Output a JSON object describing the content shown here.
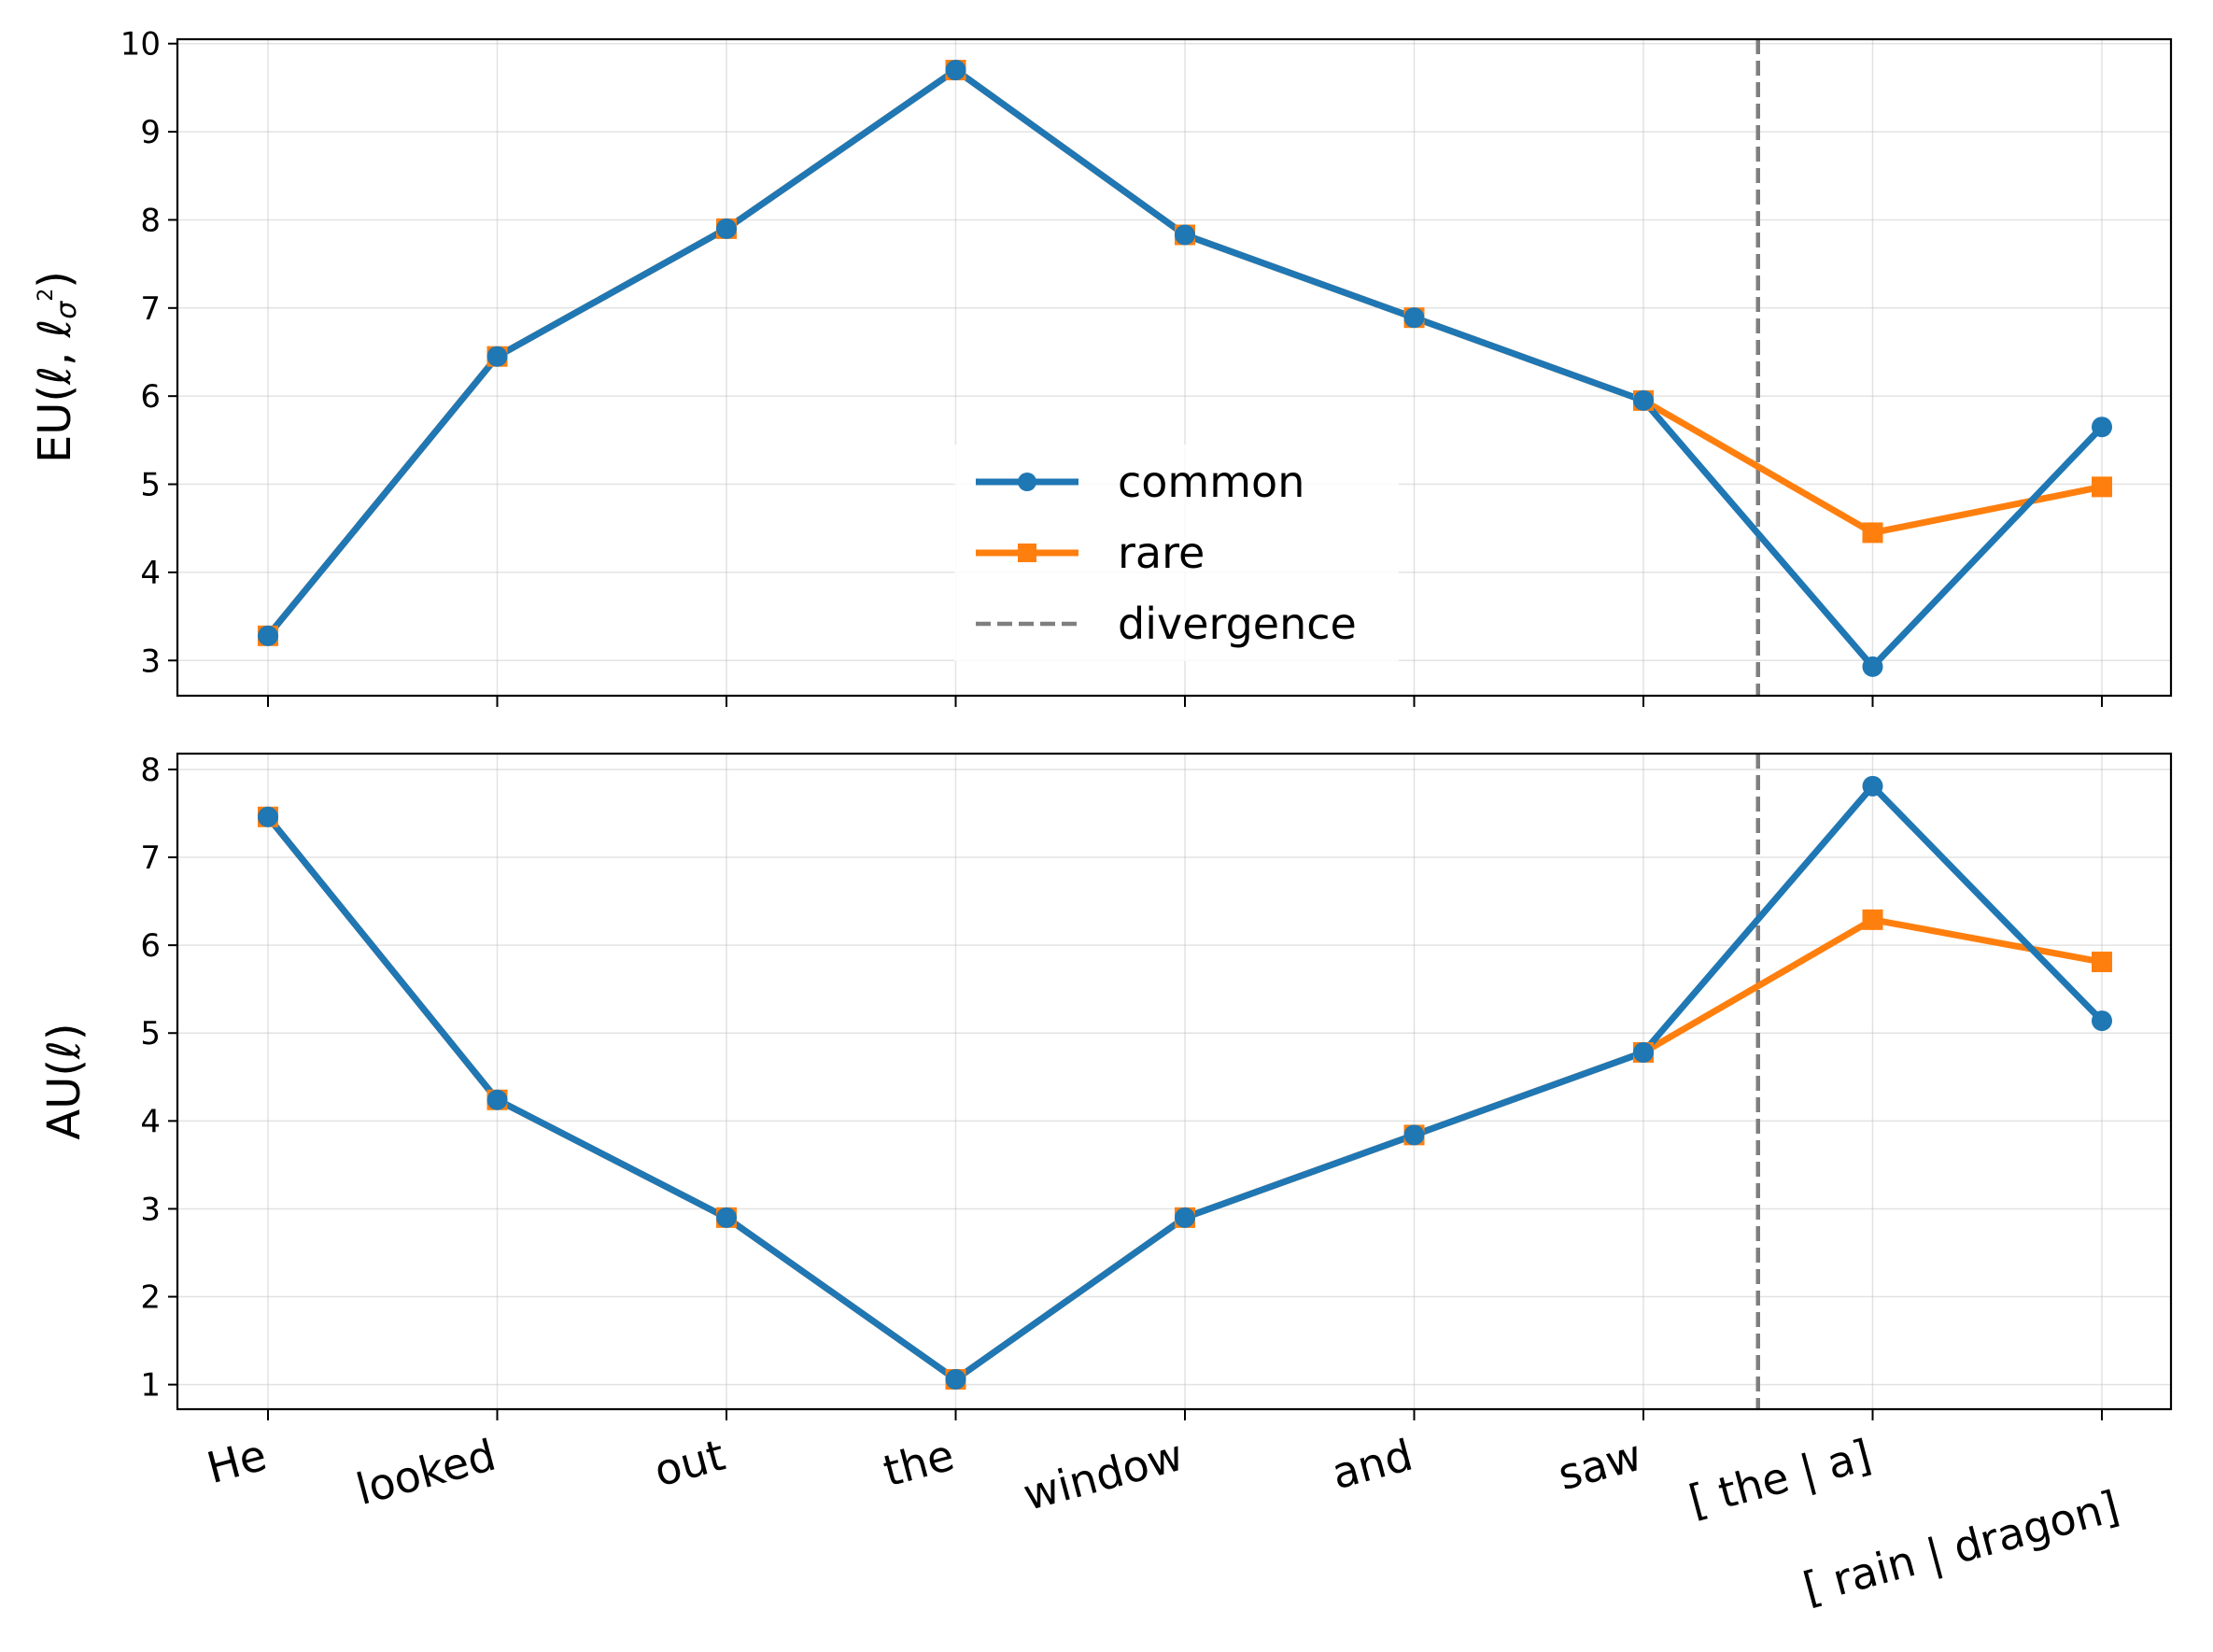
{
  "chart_data": [
    {
      "type": "line",
      "panel": "top",
      "ylabel": "EU(ℓ, ℓσ²)",
      "ylim": [
        2.6,
        10.05
      ],
      "yticks": [
        3,
        4,
        5,
        6,
        7,
        8,
        9,
        10
      ],
      "categories": [
        "He",
        "looked",
        "out",
        "the",
        "window",
        "and",
        "saw",
        "[ the |  a]",
        "[ rain |  dragon]"
      ],
      "divergence_x": 6.5,
      "series": [
        {
          "name": "common",
          "color": "#1f77b4",
          "marker": "circle",
          "values": [
            3.28,
            6.45,
            7.9,
            9.7,
            7.83,
            6.89,
            5.95,
            2.93,
            5.65
          ]
        },
        {
          "name": "rare",
          "color": "#ff7f0e",
          "marker": "square",
          "values": [
            3.28,
            6.45,
            7.9,
            9.7,
            7.83,
            6.89,
            5.95,
            4.45,
            4.97
          ]
        }
      ],
      "legend": {
        "position": "center",
        "items": [
          {
            "label": "common",
            "style": "line-circle",
            "color": "#1f77b4"
          },
          {
            "label": "rare",
            "style": "line-square",
            "color": "#ff7f0e"
          },
          {
            "label": "divergence",
            "style": "dashed",
            "color": "#7f7f7f"
          }
        ]
      }
    },
    {
      "type": "line",
      "panel": "bottom",
      "ylabel": "AU(ℓ)",
      "ylim": [
        0.72,
        8.18
      ],
      "yticks": [
        1,
        2,
        3,
        4,
        5,
        6,
        7,
        8
      ],
      "categories": [
        "He",
        "looked",
        "out",
        "the",
        "window",
        "and",
        "saw",
        "[ the |  a]",
        "[ rain |  dragon]"
      ],
      "xtick_labels": [
        "He",
        "looked",
        "out",
        "the",
        "window",
        "and",
        "saw",
        "[ the |  a]",
        "[ rain |  dragon]"
      ],
      "divergence_x": 6.5,
      "series": [
        {
          "name": "common",
          "color": "#1f77b4",
          "marker": "circle",
          "values": [
            7.46,
            4.24,
            2.9,
            1.06,
            2.9,
            3.84,
            4.78,
            7.81,
            5.14
          ]
        },
        {
          "name": "rare",
          "color": "#ff7f0e",
          "marker": "square",
          "values": [
            7.46,
            4.24,
            2.9,
            1.06,
            2.9,
            3.84,
            4.78,
            6.29,
            5.81
          ]
        }
      ]
    }
  ]
}
